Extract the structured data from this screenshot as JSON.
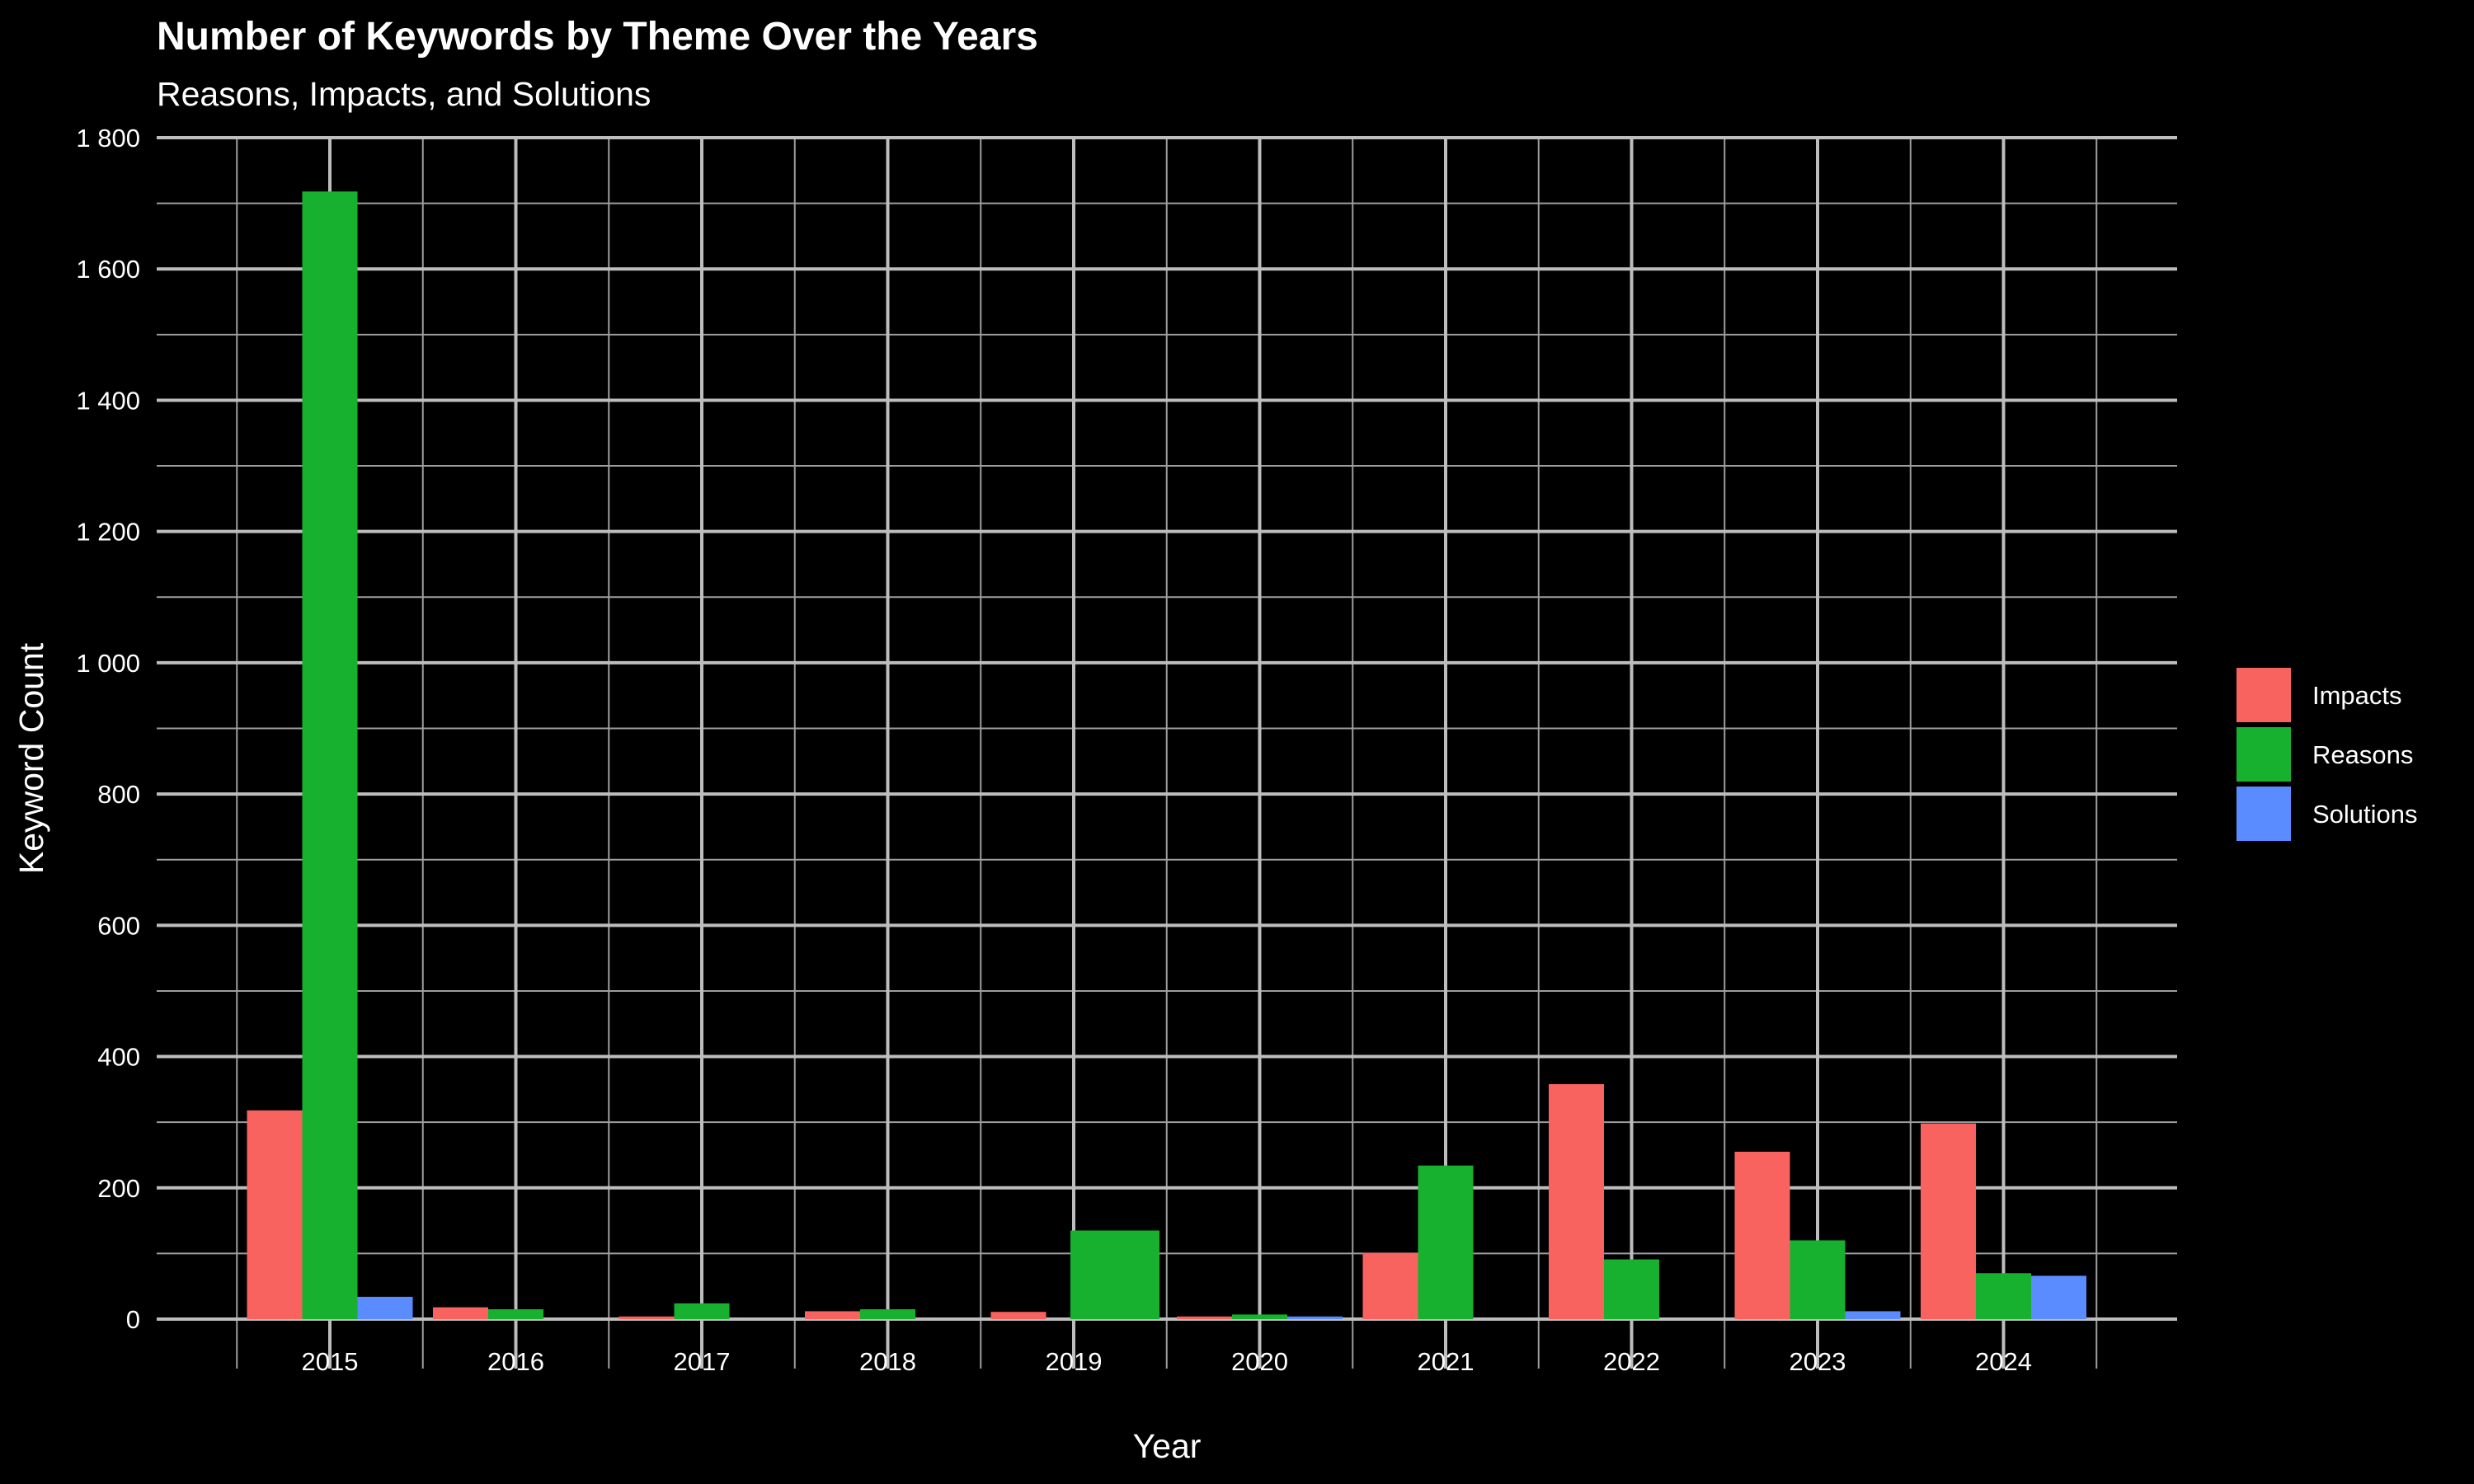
{
  "chart_data": {
    "type": "bar",
    "title": "Number of Keywords by Theme Over the Years",
    "subtitle": "Reasons, Impacts, and Solutions",
    "xlabel": "Year",
    "ylabel": "Keyword Count",
    "categories": [
      "2015",
      "2016",
      "2017",
      "2018",
      "2019",
      "2020",
      "2021",
      "2022",
      "2023",
      "2024"
    ],
    "series": [
      {
        "name": "Impacts",
        "color": "#f8635f",
        "values": [
          318,
          18,
          4,
          12,
          11,
          4,
          101,
          358,
          255,
          298
        ]
      },
      {
        "name": "Reasons",
        "color": "#17b12f",
        "values": [
          1718,
          15,
          24,
          15,
          0,
          7,
          234,
          91,
          120,
          70
        ]
      },
      {
        "name": "Solutions",
        "color": "#5a8cff",
        "values": [
          34,
          0,
          0,
          0,
          0,
          4,
          0,
          0,
          12,
          66
        ]
      }
    ],
    "extra_bars": [
      {
        "category": "2019",
        "series": "Reasons",
        "value": 135
      }
    ],
    "ylim": [
      0,
      1800
    ],
    "yticks": [
      0,
      200,
      400,
      600,
      800,
      1000,
      1200,
      1400,
      1600,
      1800
    ],
    "ytick_labels": [
      "0",
      "200",
      "400",
      "600",
      "800",
      "1 000",
      "1 200",
      "1 400",
      "1 600",
      "1 800"
    ],
    "grid": true,
    "legend": "right",
    "background": "#000000"
  }
}
